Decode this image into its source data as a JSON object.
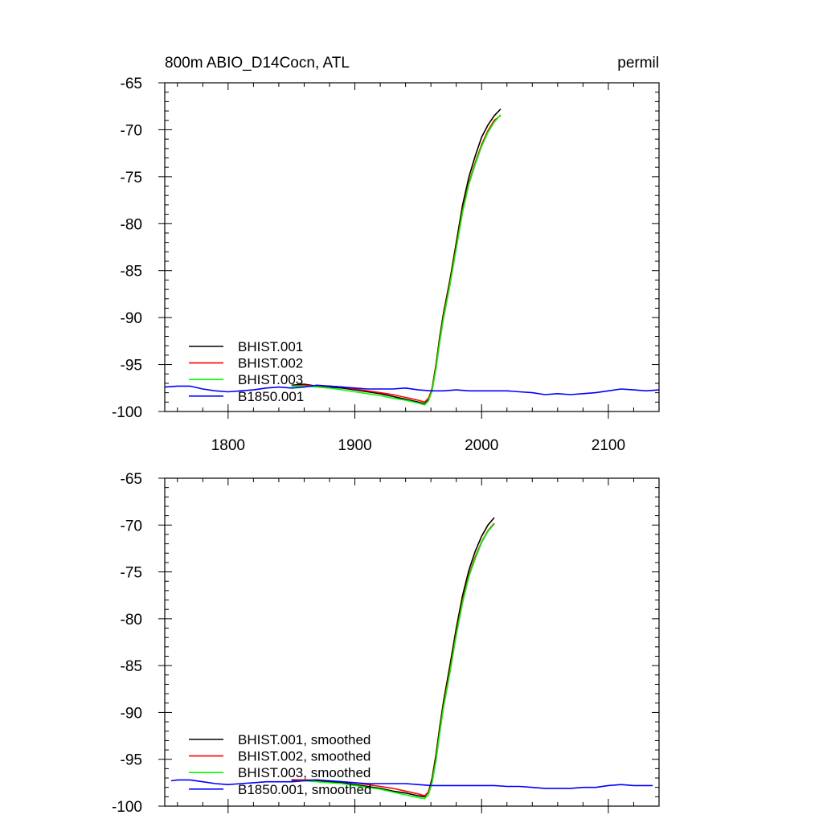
{
  "chart_data": [
    {
      "type": "line",
      "title": "800m ABIO_D14Cocn, ATL",
      "units": "permil",
      "xlim": [
        1750,
        2140
      ],
      "ylim": [
        -100,
        -65
      ],
      "x_ticks": [
        1800,
        1900,
        2000,
        2100
      ],
      "x_tick_labels": [
        "1800",
        "1900",
        "2000",
        "2100"
      ],
      "y_ticks": [
        -65,
        -70,
        -75,
        -80,
        -85,
        -90,
        -95,
        -100
      ],
      "y_tick_labels": [
        "-65",
        "-70",
        "-75",
        "-80",
        "-85",
        "-90",
        "-95",
        "-100"
      ],
      "legend_position": "lower-left",
      "grid": false,
      "series": [
        {
          "name": "BHIST.001",
          "color": "#000000",
          "x": [
            1850,
            1860,
            1870,
            1880,
            1890,
            1900,
            1910,
            1920,
            1930,
            1940,
            1950,
            1955,
            1958,
            1961,
            1964,
            1967,
            1970,
            1975,
            1980,
            1985,
            1990,
            1995,
            2000,
            2005,
            2010,
            2015
          ],
          "y": [
            -97.2,
            -97.1,
            -97.3,
            -97.4,
            -97.5,
            -97.7,
            -97.9,
            -98.1,
            -98.4,
            -98.7,
            -99.0,
            -99.2,
            -98.8,
            -97.5,
            -95.0,
            -92.0,
            -89.5,
            -86.0,
            -82.0,
            -78.0,
            -75.0,
            -72.8,
            -70.8,
            -69.5,
            -68.5,
            -67.8
          ]
        },
        {
          "name": "BHIST.002",
          "color": "#ff0000",
          "x": [
            1850,
            1860,
            1870,
            1880,
            1890,
            1900,
            1910,
            1920,
            1930,
            1940,
            1950,
            1955,
            1958,
            1961,
            1964,
            1967,
            1970,
            1975,
            1980,
            1985,
            1990,
            1995,
            2000,
            2005,
            2010,
            2015
          ],
          "y": [
            -97.3,
            -97.2,
            -97.3,
            -97.3,
            -97.4,
            -97.6,
            -97.8,
            -98.0,
            -98.2,
            -98.5,
            -98.8,
            -99.0,
            -98.6,
            -97.6,
            -95.2,
            -92.3,
            -89.8,
            -86.3,
            -82.4,
            -78.5,
            -75.6,
            -73.5,
            -71.6,
            -70.1,
            -69.0,
            -68.5
          ]
        },
        {
          "name": "BHIST.003",
          "color": "#00ff00",
          "x": [
            1850,
            1860,
            1870,
            1880,
            1890,
            1900,
            1910,
            1920,
            1930,
            1940,
            1950,
            1955,
            1958,
            1961,
            1964,
            1967,
            1970,
            1975,
            1980,
            1985,
            1990,
            1995,
            2000,
            2005,
            2010,
            2015
          ],
          "y": [
            -97.3,
            -97.3,
            -97.4,
            -97.5,
            -97.7,
            -97.9,
            -98.1,
            -98.3,
            -98.6,
            -98.8,
            -99.1,
            -99.3,
            -98.9,
            -97.8,
            -95.5,
            -92.6,
            -90.1,
            -86.6,
            -82.7,
            -78.8,
            -75.8,
            -73.7,
            -71.8,
            -70.3,
            -69.2,
            -68.4
          ]
        },
        {
          "name": "B1850.001",
          "color": "#0000ff",
          "x": [
            1750,
            1760,
            1770,
            1780,
            1790,
            1800,
            1810,
            1820,
            1830,
            1840,
            1850,
            1860,
            1870,
            1880,
            1890,
            1900,
            1910,
            1920,
            1930,
            1940,
            1950,
            1960,
            1970,
            1980,
            1990,
            2000,
            2010,
            2020,
            2030,
            2040,
            2050,
            2060,
            2070,
            2080,
            2090,
            2100,
            2110,
            2120,
            2130,
            2140
          ],
          "y": [
            -97.4,
            -97.3,
            -97.3,
            -97.6,
            -97.8,
            -97.9,
            -97.8,
            -97.7,
            -97.5,
            -97.4,
            -97.5,
            -97.4,
            -97.2,
            -97.3,
            -97.4,
            -97.5,
            -97.6,
            -97.6,
            -97.6,
            -97.5,
            -97.7,
            -97.8,
            -97.8,
            -97.7,
            -97.8,
            -97.8,
            -97.8,
            -97.8,
            -97.9,
            -98.0,
            -98.2,
            -98.1,
            -98.2,
            -98.1,
            -98.0,
            -97.8,
            -97.6,
            -97.7,
            -97.8,
            -97.7
          ]
        }
      ]
    },
    {
      "type": "line",
      "title": "",
      "xlim": [
        1750,
        2140
      ],
      "ylim": [
        -100,
        -65
      ],
      "x_ticks": [
        1800,
        1900,
        2000,
        2100
      ],
      "x_tick_labels": [],
      "y_ticks": [
        -65,
        -70,
        -75,
        -80,
        -85,
        -90,
        -95,
        -100
      ],
      "y_tick_labels": [
        "-65",
        "-70",
        "-75",
        "-80",
        "-85",
        "-90",
        "-95",
        "-100"
      ],
      "legend_position": "lower-left",
      "grid": false,
      "series": [
        {
          "name": "BHIST.001, smoothed",
          "color": "#000000",
          "x": [
            1850,
            1860,
            1870,
            1880,
            1890,
            1900,
            1910,
            1920,
            1930,
            1940,
            1950,
            1955,
            1958,
            1961,
            1964,
            1967,
            1970,
            1975,
            1980,
            1985,
            1990,
            1995,
            2000,
            2005,
            2010
          ],
          "y": [
            -97.2,
            -97.2,
            -97.3,
            -97.4,
            -97.5,
            -97.7,
            -97.9,
            -98.1,
            -98.4,
            -98.6,
            -98.9,
            -99.0,
            -98.5,
            -97.0,
            -94.5,
            -91.5,
            -88.8,
            -85.0,
            -81.0,
            -77.5,
            -74.8,
            -72.8,
            -71.2,
            -70.0,
            -69.2
          ]
        },
        {
          "name": "BHIST.002, smoothed",
          "color": "#ff0000",
          "x": [
            1850,
            1860,
            1870,
            1880,
            1890,
            1900,
            1910,
            1920,
            1930,
            1940,
            1950,
            1955,
            1958,
            1961,
            1964,
            1967,
            1970,
            1975,
            1980,
            1985,
            1990,
            1995,
            2000,
            2005,
            2010
          ],
          "y": [
            -97.3,
            -97.2,
            -97.2,
            -97.3,
            -97.4,
            -97.5,
            -97.7,
            -97.9,
            -98.1,
            -98.4,
            -98.7,
            -98.9,
            -98.5,
            -97.3,
            -94.9,
            -91.9,
            -89.2,
            -85.5,
            -81.5,
            -78.0,
            -75.3,
            -73.4,
            -71.8,
            -70.6,
            -69.8
          ]
        },
        {
          "name": "BHIST.003, smoothed",
          "color": "#00ff00",
          "x": [
            1850,
            1860,
            1870,
            1880,
            1890,
            1900,
            1910,
            1920,
            1930,
            1940,
            1950,
            1955,
            1958,
            1961,
            1964,
            1967,
            1970,
            1975,
            1980,
            1985,
            1990,
            1995,
            2000,
            2005,
            2010
          ],
          "y": [
            -97.4,
            -97.3,
            -97.4,
            -97.5,
            -97.6,
            -97.8,
            -98.0,
            -98.2,
            -98.5,
            -98.8,
            -99.1,
            -99.2,
            -98.8,
            -97.5,
            -95.2,
            -92.2,
            -89.5,
            -85.8,
            -81.8,
            -78.3,
            -75.5,
            -73.6,
            -71.9,
            -70.7,
            -69.9
          ]
        },
        {
          "name": "B1850.001, smoothed",
          "color": "#0000ff",
          "x": [
            1755,
            1760,
            1770,
            1780,
            1790,
            1800,
            1810,
            1820,
            1830,
            1840,
            1850,
            1860,
            1870,
            1880,
            1890,
            1900,
            1910,
            1920,
            1930,
            1940,
            1950,
            1960,
            1970,
            1980,
            1990,
            2000,
            2010,
            2020,
            2030,
            2040,
            2050,
            2060,
            2070,
            2080,
            2090,
            2100,
            2110,
            2120,
            2130,
            2135
          ],
          "y": [
            -97.3,
            -97.2,
            -97.2,
            -97.4,
            -97.6,
            -97.7,
            -97.6,
            -97.5,
            -97.4,
            -97.4,
            -97.4,
            -97.3,
            -97.2,
            -97.3,
            -97.4,
            -97.5,
            -97.6,
            -97.6,
            -97.6,
            -97.6,
            -97.7,
            -97.8,
            -97.8,
            -97.8,
            -97.8,
            -97.8,
            -97.8,
            -97.9,
            -97.9,
            -98.0,
            -98.1,
            -98.1,
            -98.1,
            -98.0,
            -98.0,
            -97.8,
            -97.7,
            -97.8,
            -97.8,
            -97.8
          ]
        }
      ]
    }
  ]
}
